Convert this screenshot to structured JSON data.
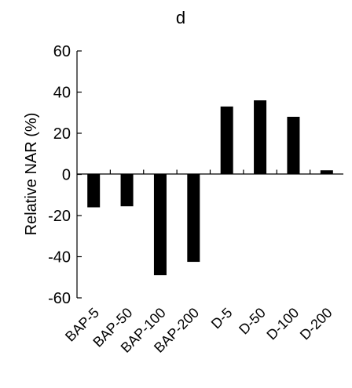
{
  "chart_data": {
    "type": "bar",
    "title": "d",
    "xlabel": "",
    "ylabel": "Relative NAR (%)",
    "categories": [
      "BAP-5",
      "BAP-50",
      "BAP-100",
      "BAP-200",
      "D-5",
      "D-50",
      "D-100",
      "D-200"
    ],
    "values": [
      -16,
      -15.5,
      -49,
      -42.5,
      33,
      36,
      28,
      2
    ],
    "ylim": [
      -60,
      60
    ],
    "yticks": [
      -60,
      -40,
      -20,
      0,
      20,
      40,
      60
    ],
    "grid": false,
    "legend": "none",
    "bar_color": "#000000"
  }
}
